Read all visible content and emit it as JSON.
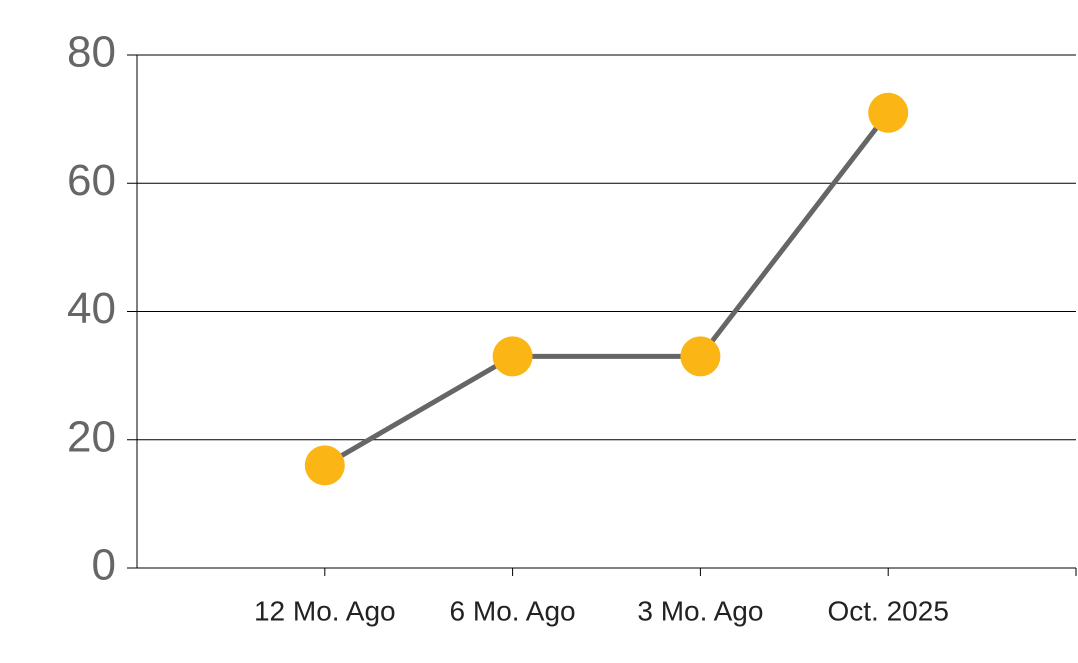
{
  "chart_data": {
    "type": "line",
    "categories": [
      "12 Mo. Ago",
      "6 Mo. Ago",
      "3 Mo. Ago",
      "Oct. 2025"
    ],
    "series": [
      {
        "name": "Value",
        "line_color": "#666666",
        "marker_color": "#fbb616",
        "values": [
          16,
          33,
          33,
          71
        ]
      }
    ],
    "ylim": [
      0,
      80
    ],
    "yticks": [
      0,
      20,
      40,
      60,
      80
    ],
    "grid": true,
    "legend": false
  }
}
